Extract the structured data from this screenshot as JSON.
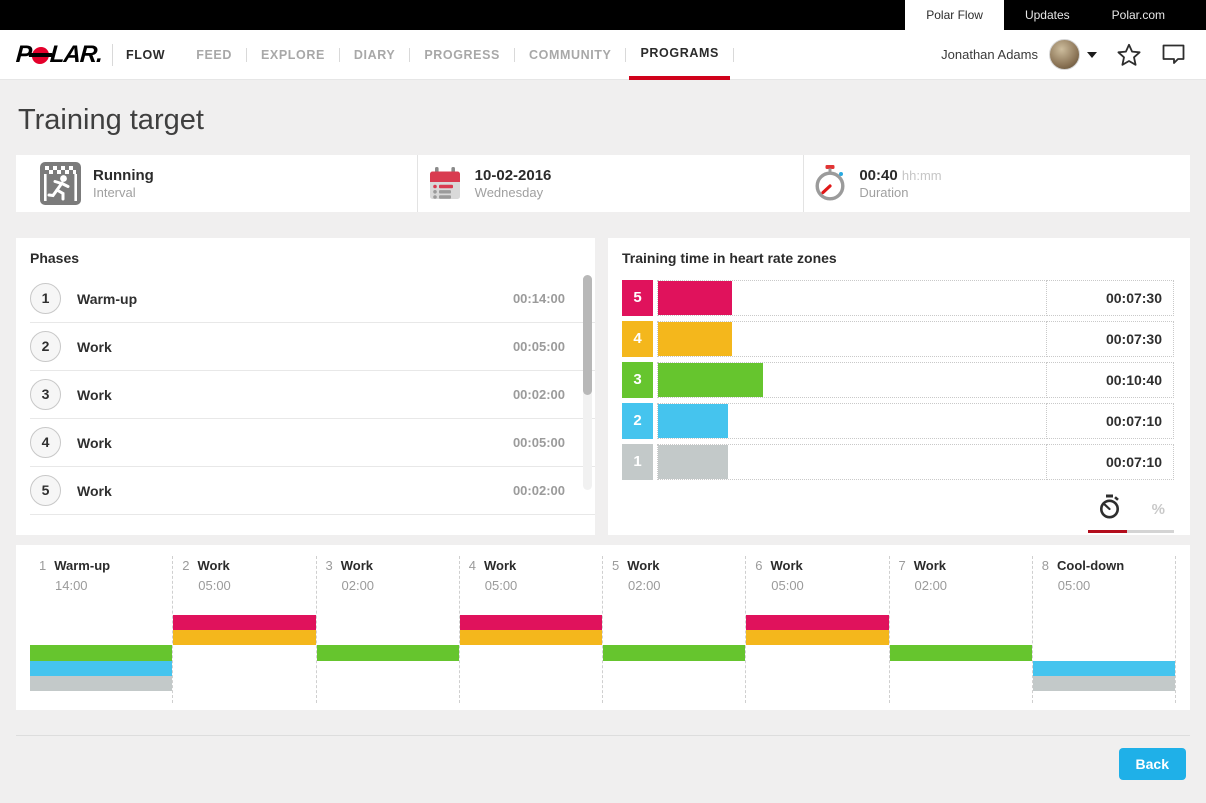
{
  "topbar": {
    "tabs": [
      {
        "label": "Polar Flow",
        "active": true
      },
      {
        "label": "Updates",
        "active": false
      },
      {
        "label": "Polar.com",
        "active": false
      }
    ]
  },
  "nav": {
    "brand": {
      "logo_p": "P",
      "logo_rest": "LAR.",
      "flow": "FLOW"
    },
    "menu": [
      {
        "label": "FEED",
        "active": false
      },
      {
        "label": "EXPLORE",
        "active": false
      },
      {
        "label": "DIARY",
        "active": false
      },
      {
        "label": "PROGRESS",
        "active": false
      },
      {
        "label": "COMMUNITY",
        "active": false
      },
      {
        "label": "PROGRAMS",
        "active": true
      }
    ],
    "user": {
      "name": "Jonathan Adams"
    }
  },
  "page": {
    "title": "Training target"
  },
  "summary": {
    "sport": "Running",
    "type": "Interval",
    "date": "10-02-2016",
    "weekday": "Wednesday",
    "duration": "00:40",
    "duration_unit": "hh:mm",
    "duration_label": "Duration"
  },
  "phases": {
    "heading": "Phases",
    "items": [
      {
        "num": "1",
        "name": "Warm-up",
        "time": "00:14:00"
      },
      {
        "num": "2",
        "name": "Work",
        "time": "00:05:00"
      },
      {
        "num": "3",
        "name": "Work",
        "time": "00:02:00"
      },
      {
        "num": "4",
        "name": "Work",
        "time": "00:05:00"
      },
      {
        "num": "5",
        "name": "Work",
        "time": "00:02:00"
      }
    ]
  },
  "zones": {
    "heading": "Training time in heart rate zones",
    "colors": {
      "5": "#e0125c",
      "4": "#f4b71c",
      "3": "#66c52e",
      "2": "#45c4ee",
      "1": "#c3c9c9"
    },
    "rows": [
      {
        "zone": "5",
        "time": "00:07:30",
        "width_pct": 19.1
      },
      {
        "zone": "4",
        "time": "00:07:30",
        "width_pct": 19.1
      },
      {
        "zone": "3",
        "time": "00:10:40",
        "width_pct": 27.0
      },
      {
        "zone": "2",
        "time": "00:07:10",
        "width_pct": 18.1
      },
      {
        "zone": "1",
        "time": "00:07:10",
        "width_pct": 18.1
      }
    ],
    "toggle": {
      "percent_label": "%"
    }
  },
  "timeline": {
    "phases": [
      {
        "num": "1",
        "name": "Warm-up",
        "time": "14:00",
        "zones": [
          3,
          2,
          1
        ]
      },
      {
        "num": "2",
        "name": "Work",
        "time": "05:00",
        "zones": [
          5,
          4
        ]
      },
      {
        "num": "3",
        "name": "Work",
        "time": "02:00",
        "zones": [
          3
        ]
      },
      {
        "num": "4",
        "name": "Work",
        "time": "05:00",
        "zones": [
          5,
          4
        ]
      },
      {
        "num": "5",
        "name": "Work",
        "time": "02:00",
        "zones": [
          3
        ]
      },
      {
        "num": "6",
        "name": "Work",
        "time": "05:00",
        "zones": [
          5,
          4
        ]
      },
      {
        "num": "7",
        "name": "Work",
        "time": "02:00",
        "zones": [
          3
        ]
      },
      {
        "num": "8",
        "name": "Cool-down",
        "time": "05:00",
        "zones": [
          2,
          1
        ]
      }
    ]
  },
  "footer": {
    "back_label": "Back"
  }
}
